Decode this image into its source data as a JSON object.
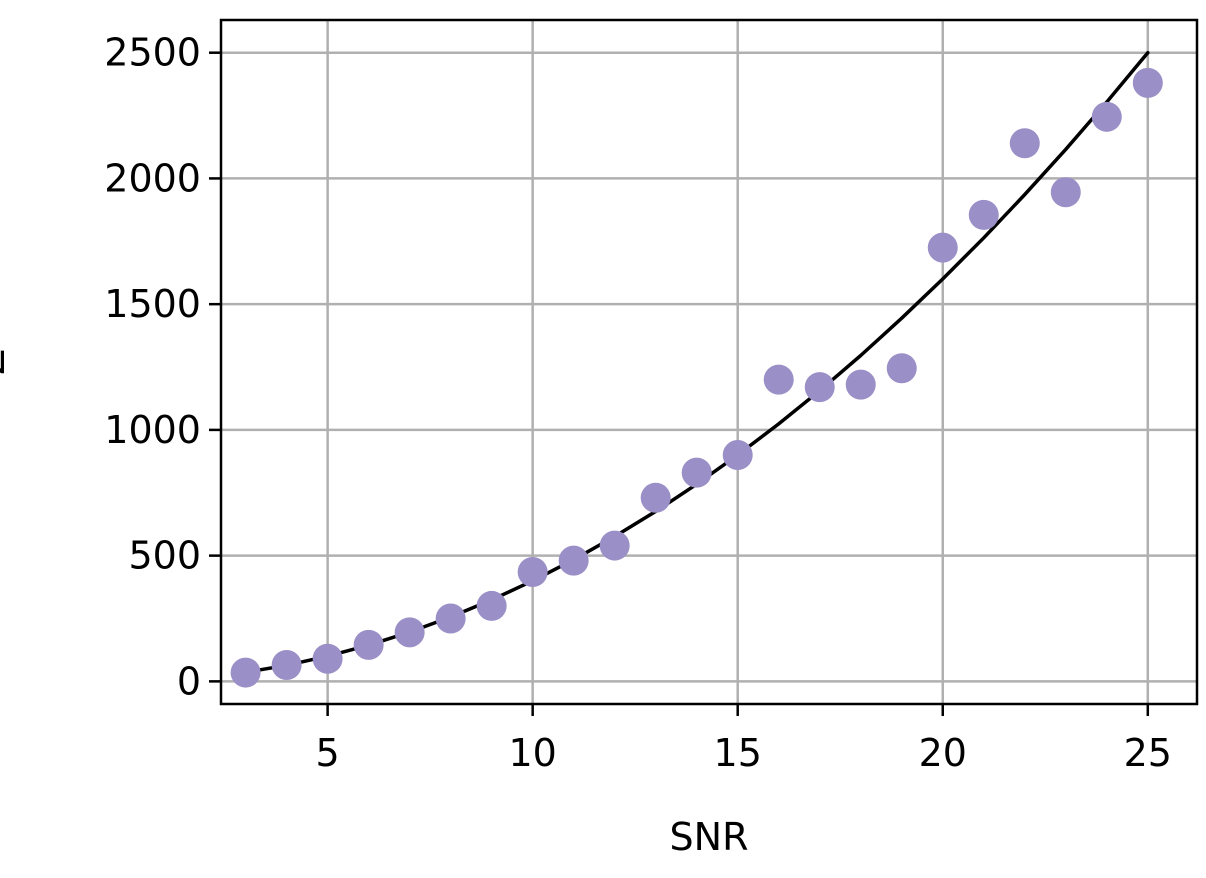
{
  "chart_data": {
    "type": "scatter",
    "title": "",
    "xlabel": "SNR",
    "ylabel": "Z",
    "xlim": [
      2.4,
      26.2
    ],
    "ylim": [
      -90,
      2630
    ],
    "xticks": [
      5,
      10,
      15,
      20,
      25
    ],
    "yticks": [
      0,
      500,
      1000,
      1500,
      2000,
      2500
    ],
    "grid": true,
    "legend": "none",
    "series": [
      {
        "kind": "points",
        "color": "#9a8fc6",
        "x": [
          3,
          4,
          5,
          6,
          7,
          8,
          9,
          10,
          11,
          12,
          13,
          14,
          15,
          16,
          17,
          18,
          19,
          20,
          21,
          22,
          23,
          24,
          25
        ],
        "y": [
          35,
          65,
          90,
          145,
          195,
          250,
          300,
          435,
          480,
          540,
          730,
          830,
          900,
          1200,
          1170,
          1180,
          1245,
          1725,
          1855,
          2140,
          1945,
          2245,
          2380
        ]
      },
      {
        "kind": "fit-line",
        "color": "#000000",
        "x": [
          3,
          4,
          5,
          6,
          7,
          8,
          9,
          10,
          11,
          12,
          13,
          14,
          15,
          16,
          17,
          18,
          19,
          20,
          21,
          22,
          23,
          24,
          25
        ],
        "y": [
          36,
          64,
          100,
          144,
          196,
          256,
          324,
          400,
          484,
          576,
          676,
          784,
          900,
          1024,
          1156,
          1296,
          1444,
          1600,
          1764,
          1936,
          2116,
          2304,
          2500
        ]
      }
    ]
  }
}
